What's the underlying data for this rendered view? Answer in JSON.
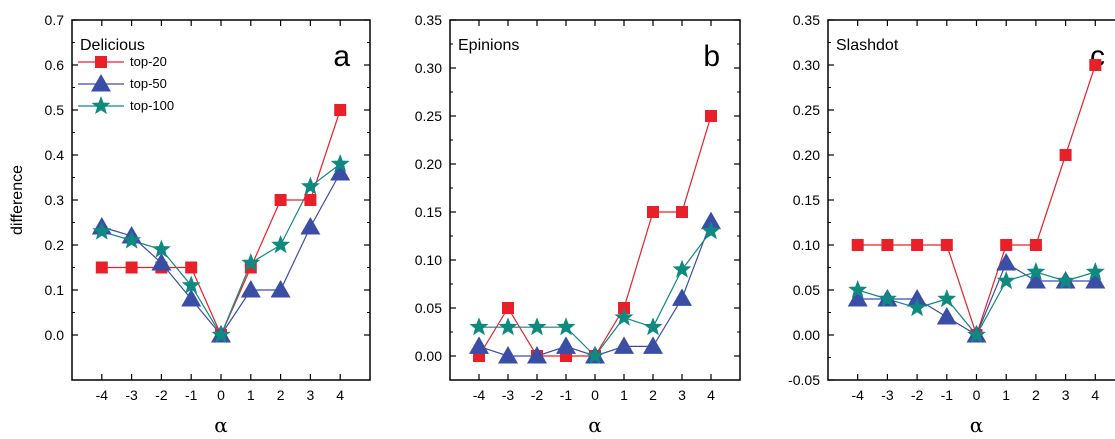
{
  "y_axis_label": "difference",
  "legend": [
    {
      "name": "top-20",
      "color": "#e8202a",
      "marker": "square"
    },
    {
      "name": "top-50",
      "color": "#3a4ea6",
      "marker": "triangle"
    },
    {
      "name": "top-100",
      "color": "#0f8a80",
      "marker": "star"
    }
  ],
  "chart_data": [
    {
      "type": "line",
      "title": "Delicious",
      "panel_letter": "a",
      "xlabel": "α",
      "ylabel": "difference",
      "x": [
        -4,
        -3,
        -2,
        -1,
        0,
        1,
        2,
        3,
        4
      ],
      "xlim": [
        -5,
        5
      ],
      "ylim": [
        -0.1,
        0.7
      ],
      "yticks": [
        "0.0",
        "0.1",
        "0.2",
        "0.3",
        "0.4",
        "0.5",
        "0.6",
        "0.7"
      ],
      "series": [
        {
          "name": "top-20",
          "values": [
            0.15,
            0.15,
            0.15,
            0.15,
            0.0,
            0.15,
            0.3,
            0.3,
            0.5
          ]
        },
        {
          "name": "top-50",
          "values": [
            0.24,
            0.22,
            0.16,
            0.08,
            0.0,
            0.1,
            0.1,
            0.24,
            0.36
          ]
        },
        {
          "name": "top-100",
          "values": [
            0.23,
            0.21,
            0.19,
            0.11,
            0.0,
            0.16,
            0.2,
            0.33,
            0.38
          ]
        }
      ],
      "legend_position": "top-left"
    },
    {
      "type": "line",
      "title": "Epinions",
      "panel_letter": "b",
      "xlabel": "α",
      "ylabel": "",
      "x": [
        -4,
        -3,
        -2,
        -1,
        0,
        1,
        2,
        3,
        4
      ],
      "xlim": [
        -5,
        5
      ],
      "ylim": [
        -0.025,
        0.35
      ],
      "yticks": [
        "0.00",
        "0.05",
        "0.10",
        "0.15",
        "0.20",
        "0.25",
        "0.30",
        "0.35"
      ],
      "series": [
        {
          "name": "top-20",
          "values": [
            0.0,
            0.05,
            0.0,
            0.0,
            0.0,
            0.05,
            0.15,
            0.15,
            0.25
          ]
        },
        {
          "name": "top-50",
          "values": [
            0.01,
            0.0,
            0.0,
            0.01,
            0.0,
            0.01,
            0.01,
            0.06,
            0.14
          ]
        },
        {
          "name": "top-100",
          "values": [
            0.03,
            0.03,
            0.03,
            0.03,
            0.0,
            0.04,
            0.03,
            0.09,
            0.13
          ]
        }
      ]
    },
    {
      "type": "line",
      "title": "Slashdot",
      "panel_letter": "c",
      "xlabel": "α",
      "ylabel": "",
      "x": [
        -4,
        -3,
        -2,
        -1,
        0,
        1,
        2,
        3,
        4
      ],
      "xlim": [
        -5,
        5
      ],
      "ylim": [
        -0.05,
        0.35
      ],
      "yticks": [
        "-0.05",
        "0.00",
        "0.05",
        "0.10",
        "0.15",
        "0.20",
        "0.25",
        "0.30",
        "0.35"
      ],
      "series": [
        {
          "name": "top-20",
          "values": [
            0.1,
            0.1,
            0.1,
            0.1,
            0.0,
            0.1,
            0.1,
            0.2,
            0.3
          ]
        },
        {
          "name": "top-50",
          "values": [
            0.04,
            0.04,
            0.04,
            0.02,
            0.0,
            0.08,
            0.06,
            0.06,
            0.06
          ]
        },
        {
          "name": "top-100",
          "values": [
            0.05,
            0.04,
            0.03,
            0.04,
            0.0,
            0.06,
            0.07,
            0.06,
            0.07
          ]
        }
      ]
    }
  ]
}
